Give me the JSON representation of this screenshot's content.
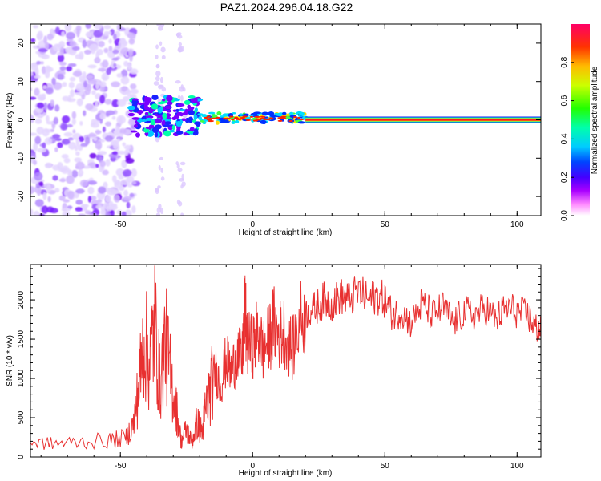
{
  "title": "PAZ1.2024.296.04.18.G22",
  "colors": {
    "snr_line": "#e83030",
    "colorbar": [
      "#ffffff",
      "#ff66ff",
      "#8800ff",
      "#0000ff",
      "#00ffff",
      "#00ff00",
      "#ffff00",
      "#ff8800",
      "#ff0000",
      "#ff0066"
    ]
  },
  "chart_data": [
    {
      "type": "heatmap",
      "title": "PAZ1.2024.296.04.18.G22",
      "xlabel": "Height of straight line (km)",
      "ylabel": "Frequency (Hz)",
      "xlim": [
        -84,
        109
      ],
      "ylim": [
        -25,
        25
      ],
      "x_ticks": [
        "-50",
        "0",
        "50",
        "100"
      ],
      "y_ticks": [
        "-20",
        "-10",
        "0",
        "10",
        "20"
      ],
      "colorbar": {
        "label": "Normalized spectral amplitude",
        "range": [
          0,
          1
        ],
        "ticks": [
          "0.0",
          "0.2",
          "0.4",
          "0.6",
          "0.8"
        ]
      },
      "regions": [
        {
          "x": [
            -84,
            -45
          ],
          "freq": [
            -25,
            25
          ],
          "amplitude": "low, scattered noise"
        },
        {
          "x": [
            -45,
            -20
          ],
          "freq": [
            -5,
            8
          ],
          "amplitude": "medium, fragmented"
        },
        {
          "x": [
            -20,
            20
          ],
          "freq": [
            -1,
            2
          ],
          "amplitude": "high, narrow band"
        },
        {
          "x": [
            20,
            109
          ],
          "freq": [
            -0.5,
            0.5
          ],
          "amplitude": "maximum (~1.0) at 0 Hz"
        }
      ]
    },
    {
      "type": "line",
      "xlabel": "Height of straight line (km)",
      "ylabel": "SNR (10 * v/v)",
      "xlim": [
        -84,
        109
      ],
      "ylim": [
        0,
        2450
      ],
      "x_ticks": [
        "-50",
        "0",
        "50",
        "100"
      ],
      "y_ticks": [
        "0",
        "500",
        "1000",
        "1500",
        "2000"
      ],
      "x": [
        -84,
        -75,
        -65,
        -55,
        -48,
        -45,
        -43,
        -41,
        -39,
        -37,
        -35,
        -33,
        -31,
        -29,
        -27,
        -25,
        -23,
        -21,
        -19,
        -18,
        -16,
        -14,
        -12,
        -10,
        -8,
        -6,
        -4,
        -3,
        -2,
        0,
        2,
        4,
        6,
        8,
        10,
        12,
        15,
        18,
        21,
        24,
        27,
        30,
        33,
        36,
        40,
        44,
        47,
        50,
        53,
        56,
        60,
        64,
        68,
        72,
        76,
        80,
        84,
        88,
        92,
        96,
        100,
        104,
        107,
        109
      ],
      "values": [
        180,
        170,
        190,
        210,
        240,
        420,
        900,
        1500,
        1200,
        1700,
        900,
        1500,
        1000,
        650,
        200,
        350,
        180,
        450,
        300,
        600,
        850,
        1100,
        900,
        1250,
        1050,
        1350,
        1200,
        1900,
        1450,
        1400,
        1600,
        1350,
        1500,
        1700,
        1550,
        1600,
        1350,
        1750,
        1850,
        1900,
        2000,
        1950,
        2050,
        2000,
        2100,
        2000,
        2050,
        2000,
        1800,
        1850,
        1700,
        1950,
        1800,
        1900,
        1700,
        1850,
        1800,
        1900,
        1750,
        1900,
        1850,
        1800,
        1650,
        1600
      ]
    }
  ]
}
